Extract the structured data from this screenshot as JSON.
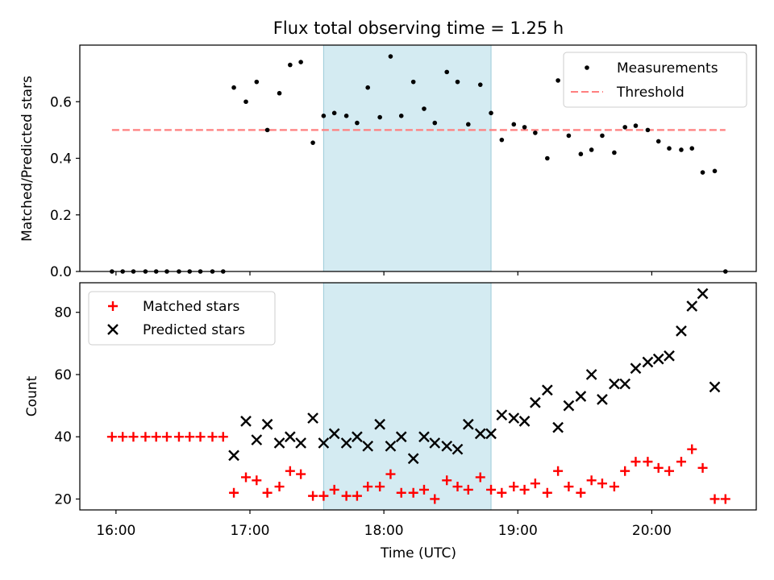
{
  "colors": {
    "measurement": "#000000",
    "threshold": "#ff7f7f",
    "matched": "#ff0000",
    "predicted": "#000000",
    "span": "#add8e6"
  },
  "chart_data": [
    {
      "type": "scatter",
      "title": "Flux total observing time = 1.25 h",
      "xlabel": "",
      "ylabel": "Matched/Predicted stars",
      "xlim": [
        15.73,
        20.78
      ],
      "ylim": [
        0,
        0.8
      ],
      "yticks": [
        "0.0",
        "0.2",
        "0.4",
        "0.6"
      ],
      "highlight_span": [
        17.55,
        18.8
      ],
      "threshold": {
        "name": "Threshold",
        "value": 0.5,
        "x": [
          15.97,
          20.55
        ]
      },
      "legend": {
        "position": "top-right",
        "entries": [
          "Measurements",
          "Threshold"
        ]
      },
      "series": [
        {
          "name": "Measurements",
          "x": [
            15.97,
            16.05,
            16.13,
            16.22,
            16.3,
            16.38,
            16.47,
            16.55,
            16.63,
            16.72,
            16.8,
            16.88,
            16.97,
            17.05,
            17.13,
            17.22,
            17.3,
            17.38,
            17.47,
            17.55,
            17.63,
            17.72,
            17.8,
            17.88,
            17.97,
            18.05,
            18.13,
            18.22,
            18.3,
            18.38,
            18.47,
            18.55,
            18.63,
            18.72,
            18.8,
            18.88,
            18.97,
            19.05,
            19.13,
            19.22,
            19.3,
            19.38,
            19.47,
            19.55,
            19.63,
            19.72,
            19.8,
            19.88,
            19.97,
            20.05,
            20.13,
            20.22,
            20.3,
            20.38,
            20.47,
            20.55
          ],
          "y": [
            0.0,
            0.0,
            0.0,
            0.0,
            0.0,
            0.0,
            0.0,
            0.0,
            0.0,
            0.0,
            0.0,
            0.65,
            0.6,
            0.67,
            0.5,
            0.63,
            0.73,
            0.74,
            0.455,
            0.55,
            0.56,
            0.55,
            0.525,
            0.65,
            0.545,
            0.76,
            0.55,
            0.67,
            0.575,
            0.525,
            0.705,
            0.67,
            0.52,
            0.66,
            0.56,
            0.465,
            0.52,
            0.51,
            0.49,
            0.4,
            0.675,
            0.48,
            0.415,
            0.43,
            0.48,
            0.42,
            0.51,
            0.515,
            0.5,
            0.46,
            0.435,
            0.43,
            0.435,
            0.35,
            0.355,
            0.0
          ]
        }
      ]
    },
    {
      "type": "scatter",
      "title": "",
      "xlabel": "Time (UTC)",
      "ylabel": "Count",
      "xlim": [
        15.73,
        20.78
      ],
      "ylim": [
        16.5,
        89.5
      ],
      "xticks": [
        {
          "value": 16,
          "label": "16:00"
        },
        {
          "value": 17,
          "label": "17:00"
        },
        {
          "value": 18,
          "label": "18:00"
        },
        {
          "value": 19,
          "label": "19:00"
        },
        {
          "value": 20,
          "label": "20:00"
        }
      ],
      "yticks": [
        20,
        40,
        60,
        80
      ],
      "highlight_span": [
        17.55,
        18.8
      ],
      "legend": {
        "position": "top-left",
        "entries": [
          "Matched stars",
          "Predicted stars"
        ]
      },
      "series": [
        {
          "name": "Matched stars",
          "marker": "+",
          "x": [
            15.97,
            16.05,
            16.13,
            16.22,
            16.3,
            16.38,
            16.47,
            16.55,
            16.63,
            16.72,
            16.8,
            16.88,
            16.97,
            17.05,
            17.13,
            17.22,
            17.3,
            17.38,
            17.47,
            17.55,
            17.63,
            17.72,
            17.8,
            17.88,
            17.97,
            18.05,
            18.13,
            18.22,
            18.3,
            18.38,
            18.47,
            18.55,
            18.63,
            18.72,
            18.8,
            18.88,
            18.97,
            19.05,
            19.13,
            19.22,
            19.3,
            19.38,
            19.47,
            19.55,
            19.63,
            19.72,
            19.8,
            19.88,
            19.97,
            20.05,
            20.13,
            20.22,
            20.3,
            20.38,
            20.47,
            20.55
          ],
          "y": [
            40,
            40,
            40,
            40,
            40,
            40,
            40,
            40,
            40,
            40,
            40,
            22,
            27,
            26,
            22,
            24,
            29,
            28,
            21,
            21,
            23,
            21,
            21,
            24,
            24,
            28,
            22,
            22,
            23,
            20,
            26,
            24,
            23,
            27,
            23,
            22,
            24,
            23,
            25,
            22,
            29,
            24,
            22,
            26,
            25,
            24,
            29,
            32,
            32,
            30,
            29,
            32,
            36,
            30,
            20,
            20
          ]
        },
        {
          "name": "Predicted stars",
          "marker": "x",
          "x": [
            16.88,
            16.97,
            17.05,
            17.13,
            17.22,
            17.3,
            17.38,
            17.47,
            17.55,
            17.63,
            17.72,
            17.8,
            17.88,
            17.97,
            18.05,
            18.13,
            18.22,
            18.3,
            18.38,
            18.47,
            18.55,
            18.63,
            18.72,
            18.8,
            18.88,
            18.97,
            19.05,
            19.13,
            19.22,
            19.3,
            19.38,
            19.47,
            19.55,
            19.63,
            19.72,
            19.8,
            19.88,
            19.97,
            20.05,
            20.13,
            20.22,
            20.3,
            20.38,
            20.47
          ],
          "y": [
            34,
            45,
            39,
            44,
            38,
            40,
            38,
            46,
            38,
            41,
            38,
            40,
            37,
            44,
            37,
            40,
            33,
            40,
            38,
            37,
            36,
            44,
            41,
            41,
            47,
            46,
            45,
            51,
            55,
            43,
            50,
            53,
            60,
            52,
            57,
            57,
            62,
            64,
            65,
            66,
            74,
            82,
            86,
            56
          ]
        }
      ]
    }
  ]
}
